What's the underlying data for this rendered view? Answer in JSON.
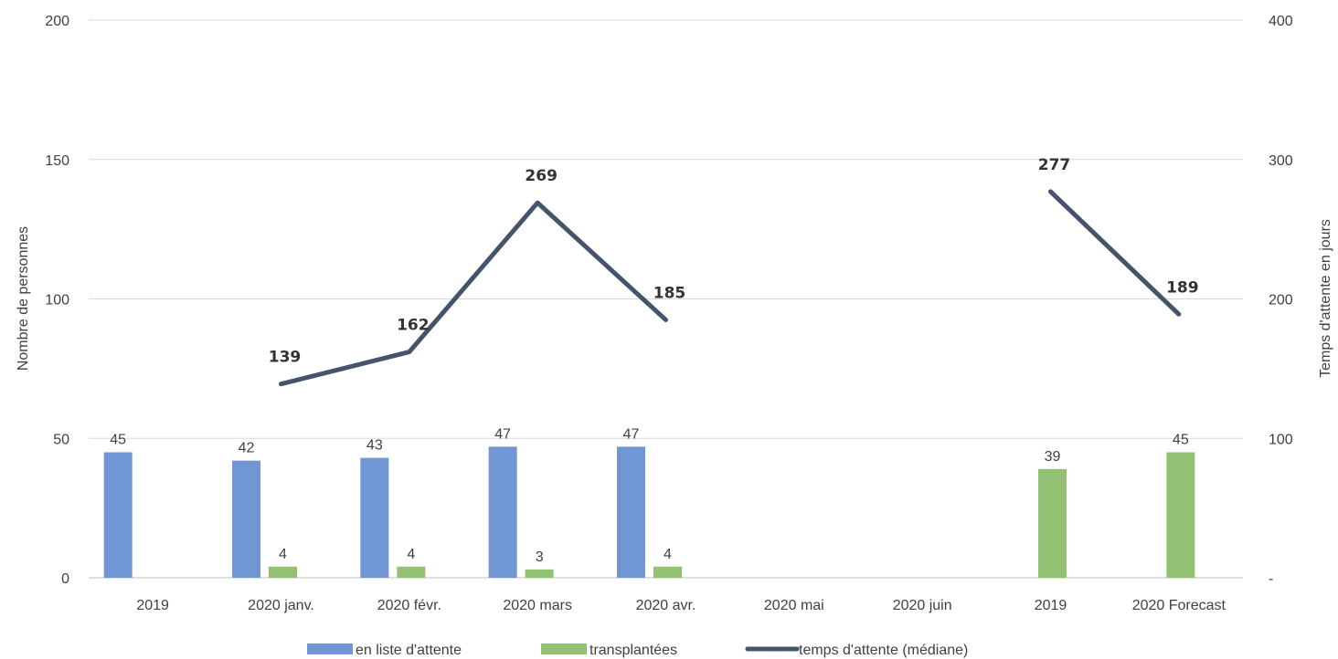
{
  "chart_data": {
    "type": "bar",
    "categories": [
      "2019",
      "2020 janv.",
      "2020 févr.",
      "2020 mars",
      "2020 avr.",
      "2020 mai",
      "2020 juin",
      "2019",
      "2020 Forecast"
    ],
    "series": [
      {
        "name": "en liste d'attente",
        "type": "bar",
        "axis": "left",
        "color": "#7096d4",
        "values": [
          45,
          42,
          43,
          47,
          47,
          null,
          null,
          null,
          null
        ]
      },
      {
        "name": "transplantées",
        "type": "bar",
        "axis": "left",
        "color": "#92c173",
        "values": [
          null,
          4,
          4,
          3,
          4,
          null,
          null,
          39,
          45
        ]
      },
      {
        "name": "temps d'attente (médiane)",
        "type": "line",
        "axis": "right",
        "color": "#44546a",
        "values": [
          null,
          139,
          162,
          269,
          185,
          null,
          null,
          277,
          189
        ]
      }
    ],
    "ylabel": "Nombre de personnes",
    "y2label": "Temps d'attente en jours",
    "ylim": [
      0,
      200
    ],
    "y2lim": [
      0,
      400
    ],
    "yticks": [
      "0",
      "50",
      "100",
      "150",
      "200"
    ],
    "y2ticks": [
      "-",
      "100",
      "200",
      "300",
      "400"
    ],
    "grid": true,
    "legend_position": "bottom"
  }
}
